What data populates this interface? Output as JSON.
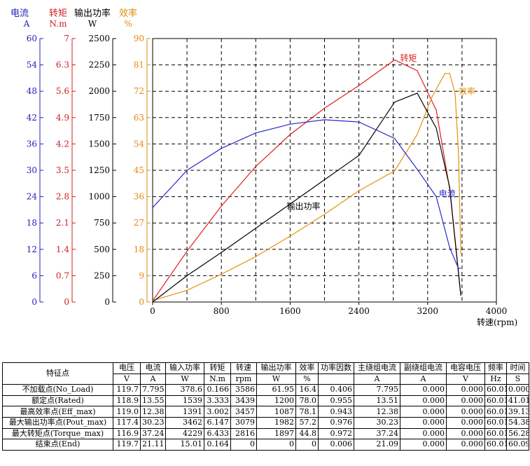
{
  "chart_data": {
    "type": "line",
    "xlabel": "转速(rpm)",
    "x_ticks": [
      0,
      800,
      1600,
      2400,
      3200,
      4000
    ],
    "xlim": [
      0,
      4000
    ],
    "grid": true,
    "axes": [
      {
        "id": "current",
        "title": "电流",
        "unit": "A",
        "color": "#2020c0",
        "range": [
          0,
          60
        ],
        "ticks": [
          0,
          6,
          12,
          18,
          24,
          30,
          36,
          42,
          48,
          54,
          60
        ]
      },
      {
        "id": "torque",
        "title": "转矩",
        "unit": "N.m",
        "color": "#d02020",
        "range": [
          0,
          7
        ],
        "ticks": [
          "0",
          "0.7",
          "1.4",
          "2.1",
          "2.8",
          "3.5",
          "4.2",
          "4.9",
          "5.6",
          "6.3",
          "7"
        ]
      },
      {
        "id": "power",
        "title": "输出功率",
        "unit": "W",
        "color": "#000000",
        "range": [
          0,
          2500
        ],
        "ticks": [
          0,
          250,
          500,
          750,
          1000,
          1250,
          1500,
          1750,
          2000,
          2250,
          2500
        ]
      },
      {
        "id": "efficiency",
        "title": "效率",
        "unit": "%",
        "color": "#e08a10",
        "range": [
          0,
          90
        ],
        "ticks": [
          0,
          9,
          18,
          27,
          36,
          45,
          54,
          63,
          72,
          81,
          90
        ]
      }
    ],
    "series": [
      {
        "name": "转矩",
        "axis": "torque",
        "color": "#e02020",
        "label_at": [
          2880,
          6.4
        ],
        "points": [
          [
            0,
            0.03
          ],
          [
            400,
            1.35
          ],
          [
            800,
            2.55
          ],
          [
            1200,
            3.6
          ],
          [
            1600,
            4.45
          ],
          [
            2000,
            5.15
          ],
          [
            2400,
            5.75
          ],
          [
            2816,
            6.433
          ],
          [
            3079,
            6.147
          ],
          [
            3300,
            5.1
          ],
          [
            3457,
            3.002
          ],
          [
            3586,
            0.166
          ]
        ]
      },
      {
        "name": "效率",
        "axis": "efficiency",
        "color": "#e8920a",
        "label_at": [
          3560,
          71
        ],
        "points": [
          [
            0,
            0.5
          ],
          [
            400,
            4
          ],
          [
            800,
            9.5
          ],
          [
            1200,
            15.5
          ],
          [
            1600,
            22.5
          ],
          [
            2000,
            30
          ],
          [
            2400,
            38
          ],
          [
            2816,
            44.8
          ],
          [
            3079,
            57.2
          ],
          [
            3250,
            70
          ],
          [
            3400,
            78
          ],
          [
            3457,
            78.1
          ],
          [
            3520,
            71
          ],
          [
            3560,
            50
          ],
          [
            3586,
            16.4
          ]
        ]
      },
      {
        "name": "输出功率",
        "axis": "power",
        "color": "#000000",
        "label_at": [
          1560,
          880
        ],
        "points": [
          [
            0,
            0
          ],
          [
            400,
            250
          ],
          [
            800,
            470
          ],
          [
            1200,
            700
          ],
          [
            1600,
            930
          ],
          [
            2000,
            1160
          ],
          [
            2400,
            1390
          ],
          [
            2816,
            1897
          ],
          [
            3079,
            1982
          ],
          [
            3300,
            1650
          ],
          [
            3457,
            1087
          ],
          [
            3586,
            61.95
          ]
        ]
      },
      {
        "name": "电流",
        "axis": "current",
        "color": "#2a2acc",
        "label_at": [
          3330,
          24
        ],
        "points": [
          [
            0,
            21.5
          ],
          [
            400,
            30
          ],
          [
            800,
            35
          ],
          [
            1200,
            38.5
          ],
          [
            1600,
            40.5
          ],
          [
            2000,
            41.5
          ],
          [
            2400,
            41
          ],
          [
            2816,
            37.24
          ],
          [
            3079,
            30.23
          ],
          [
            3300,
            24
          ],
          [
            3457,
            12.38
          ],
          [
            3560,
            7.6
          ],
          [
            3586,
            7.795
          ]
        ]
      }
    ]
  },
  "table": {
    "headers": [
      "特征点",
      "电压",
      "电流",
      "输入功率",
      "转矩",
      "转速",
      "输出功率",
      "效率",
      "功率因数",
      "主绕组电流",
      "副绕组电流",
      "电容电压",
      "频率",
      "时间"
    ],
    "units": [
      "V",
      "A",
      "W",
      "N.m",
      "rpm",
      "W",
      "%",
      "",
      "A",
      "A",
      "V",
      "Hz",
      "S"
    ],
    "rows": [
      [
        "不加载点(No_Load)",
        "119.7",
        "7.795",
        "378.6",
        "0.166",
        "3586",
        "61.95",
        "16.4",
        "0.406",
        "7.795",
        "0.000",
        "0.000",
        "60.01",
        "0.000"
      ],
      [
        "额定点(Rated)",
        "118.9",
        "13.55",
        "1539",
        "3.333",
        "3439",
        "1200",
        "78.0",
        "0.955",
        "13.51",
        "0.000",
        "0.000",
        "60.01",
        "41.01"
      ],
      [
        "最高效率点(Eff_max)",
        "119.0",
        "12.38",
        "1391",
        "3.002",
        "3457",
        "1087",
        "78.1",
        "0.943",
        "12.38",
        "0.000",
        "0.000",
        "60.01",
        "39.13"
      ],
      [
        "最大输出功率点(Pout_max)",
        "117.4",
        "30.23",
        "3462",
        "6.147",
        "3079",
        "1982",
        "57.2",
        "0.976",
        "30.23",
        "0.000",
        "0.000",
        "60.01",
        "54.38"
      ],
      [
        "最大转矩点(Torque_max)",
        "116.9",
        "37.24",
        "4229",
        "6.433",
        "2816",
        "1897",
        "44.8",
        "0.972",
        "37.24",
        "0.000",
        "0.000",
        "60.01",
        "56.28"
      ],
      [
        "结束点(End)",
        "119.7",
        "21.11",
        "15.01",
        "0.164",
        "0",
        "0",
        "0",
        "0.006",
        "21.09",
        "0.000",
        "0.000",
        "60.01",
        "60.09"
      ]
    ]
  }
}
